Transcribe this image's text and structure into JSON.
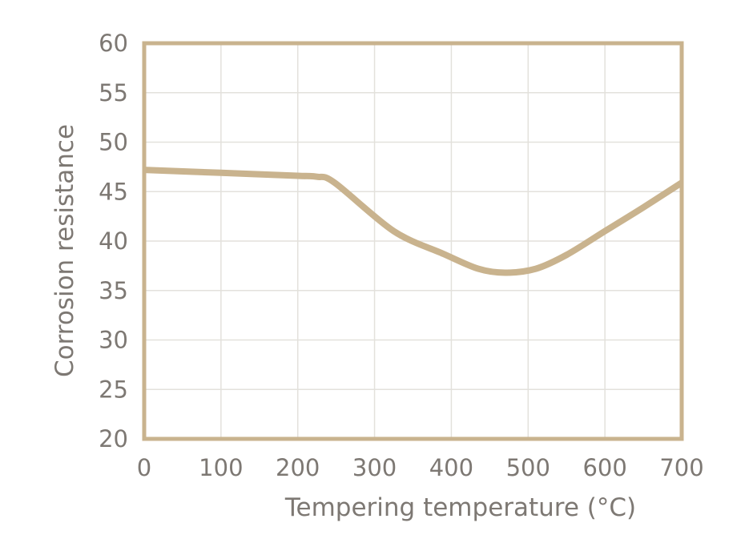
{
  "chart_data": {
    "type": "line",
    "title": "",
    "xlabel": "Tempering temperature (°C)",
    "ylabel": "Corrosion resistance",
    "xlim": [
      0,
      700
    ],
    "ylim": [
      20,
      60
    ],
    "x_ticks": [
      "0",
      "100",
      "200",
      "300",
      "400",
      "500",
      "600",
      "700"
    ],
    "y_ticks": [
      "20",
      "25",
      "30",
      "35",
      "40",
      "45",
      "50",
      "55",
      "60"
    ],
    "grid": true,
    "legend": "none",
    "series": [
      {
        "name": "Corrosion resistance",
        "x": [
          0,
          100,
          200,
          225,
          248,
          325,
          390,
          435,
          470,
          510,
          550,
          600,
          650,
          700
        ],
        "y": [
          47.2,
          46.9,
          46.6,
          46.5,
          45.9,
          41.0,
          38.7,
          37.2,
          36.8,
          37.2,
          38.6,
          41.0,
          43.4,
          45.9
        ]
      }
    ],
    "colors": {
      "line": "#c9b38e",
      "frame": "#c9b38e",
      "grid": "#e3e1dc",
      "text": "#7d7873"
    }
  }
}
